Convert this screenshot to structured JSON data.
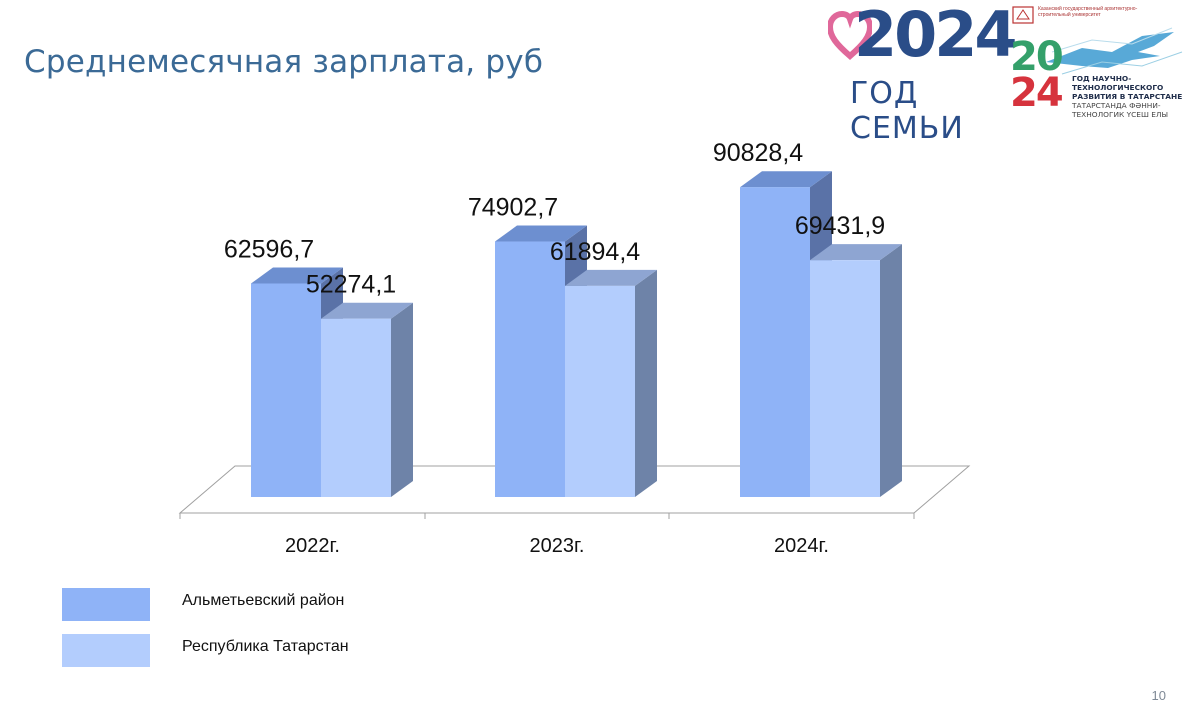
{
  "slide": {
    "title": "Среднемесячная зарплата, руб",
    "page_number": "10"
  },
  "logos": {
    "family_year": "2024",
    "family_text": "ГОД СЕМЬИ",
    "tech_university": "Казанский государственный архитектурно-строительный университет",
    "tech_year_top": "20",
    "tech_year_bottom": "24",
    "tech_caption_ru": "ГОД НАУЧНО-ТЕХНОЛОГИЧЕСКОГО РАЗВИТИЯ В ТАТАРСТАНЕ",
    "tech_caption_tt": "ТАТАРСТАНДА ФӘННИ-ТЕХНОЛОГИК ҮСЕШ ЕЛЫ"
  },
  "colors": {
    "title": "#3b6a96",
    "series_almetyevsk": "#8fb3f7",
    "series_tatarstan": "#b3cdfd"
  },
  "chart_data": {
    "type": "bar",
    "categories": [
      "2022г.",
      "2023г.",
      "2024г."
    ],
    "series": [
      {
        "name": "Альметьевский район",
        "values": [
          62596.7,
          74902.7,
          90828.4
        ],
        "labels": [
          "62596,7",
          "74902,7",
          "90828,4"
        ]
      },
      {
        "name": "Республика Татарстан",
        "values": [
          52274.1,
          61894.4,
          69431.9
        ],
        "labels": [
          "52274,1",
          "61894,4",
          "69431,9"
        ]
      }
    ],
    "ylim": [
      0,
      100000
    ],
    "grid": false,
    "legend": "bottom-left",
    "style": "3d-clustered-column"
  }
}
